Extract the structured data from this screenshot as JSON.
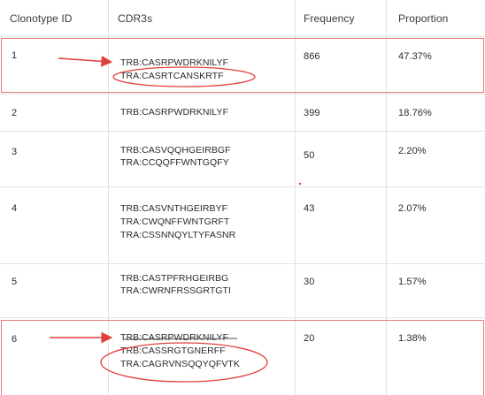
{
  "table": {
    "headers": {
      "clonotype_id": "Clonotype ID",
      "cdr3s": "CDR3s",
      "frequency": "Frequency",
      "proportion": "Proportion"
    },
    "rows": [
      {
        "id": "1",
        "cdr3s": [
          "TRB:CASRPWDRKNILYF",
          "TRA:CASRTCANSKRTF"
        ],
        "frequency": "866",
        "proportion": "47.37%"
      },
      {
        "id": "2",
        "cdr3s": [
          "TRB:CASRPWDRKNILYF"
        ],
        "frequency": "399",
        "proportion": "18.76%"
      },
      {
        "id": "3",
        "cdr3s": [
          "TRB:CASVQQHGEIRBGF",
          "TRA:CCQQFFWNTGQFY"
        ],
        "frequency": "50",
        "proportion": "2.20%"
      },
      {
        "id": "4",
        "cdr3s": [
          "TRB:CASVNTHGEIRBYF",
          "TRA:CWQNFFWNTGRFT",
          "TRA:CSSNNQYLTYFASNR"
        ],
        "frequency": "43",
        "proportion": "2.07%"
      },
      {
        "id": "5",
        "cdr3s": [
          "TRB:CASTPFRHGEIRBG",
          "TRA:CWRNFRSSGRTGTI"
        ],
        "frequency": "30",
        "proportion": "1.57%"
      },
      {
        "id": "6",
        "cdr3s": [
          "TRB:CASRPWDRKNILYF",
          "TRB:CASSRGTGNERFF",
          "TRA:CAGRVNSQQYQFVTK"
        ],
        "frequency": "20",
        "proportion": "1.38%"
      }
    ]
  },
  "annotations": {
    "highlight_color": "#e0403a",
    "box_color": "#e07a7a",
    "grid_color": "#e2e2e2"
  }
}
